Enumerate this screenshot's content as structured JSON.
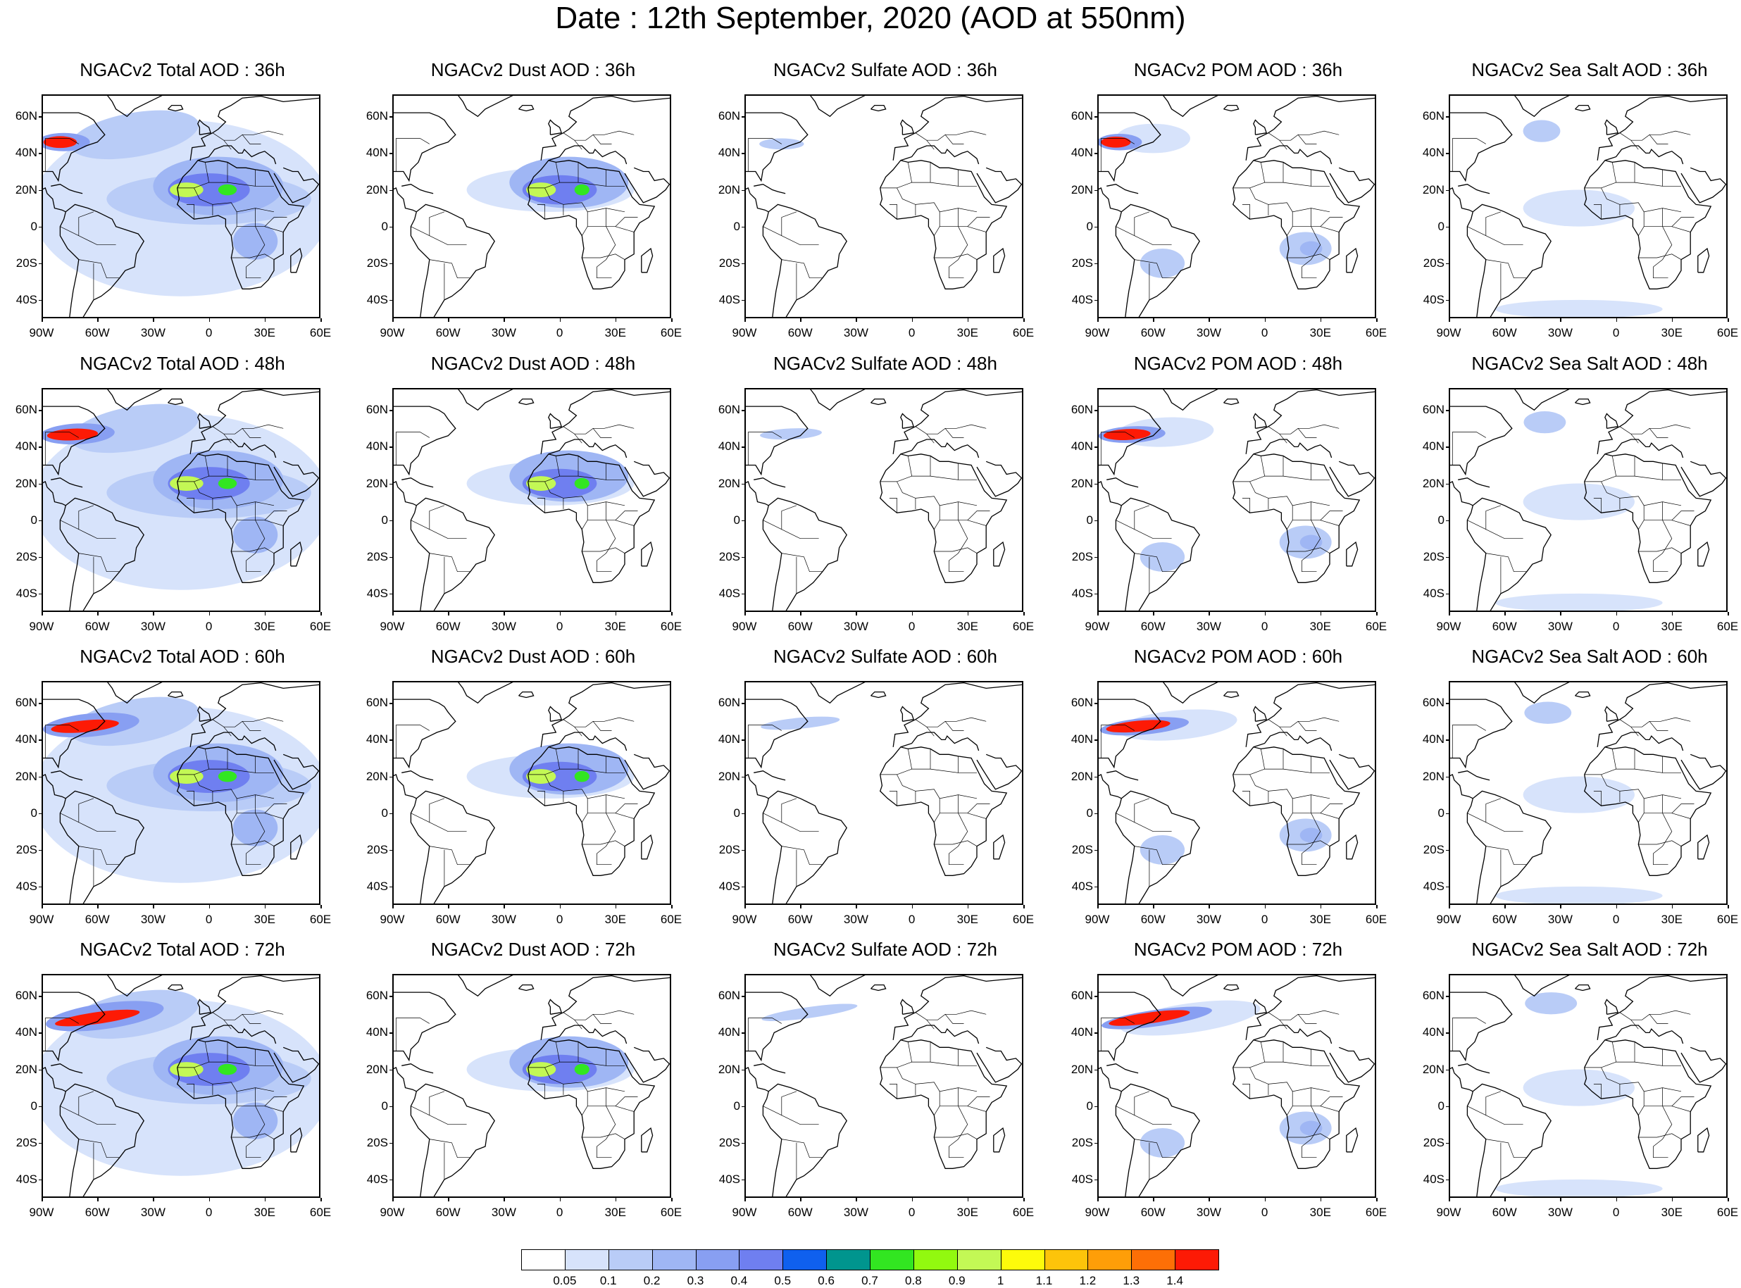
{
  "title": "Date : 12th September, 2020 (AOD at 550nm)",
  "lat_labels": [
    "60N",
    "40N",
    "20N",
    "0",
    "20S",
    "40S"
  ],
  "lon_labels": [
    "90W",
    "60W",
    "30W",
    "0",
    "30E",
    "60E"
  ],
  "panels": [
    {
      "title": "NGACv2 Total AOD : 36h",
      "species": "total",
      "hour": 36
    },
    {
      "title": "NGACv2 Dust AOD : 36h",
      "species": "dust",
      "hour": 36
    },
    {
      "title": "NGACv2 Sulfate AOD : 36h",
      "species": "sulfate",
      "hour": 36
    },
    {
      "title": "NGACv2 POM AOD : 36h",
      "species": "pom",
      "hour": 36
    },
    {
      "title": "NGACv2 Sea Salt AOD : 36h",
      "species": "seasalt",
      "hour": 36
    },
    {
      "title": "NGACv2 Total AOD : 48h",
      "species": "total",
      "hour": 48
    },
    {
      "title": "NGACv2 Dust AOD : 48h",
      "species": "dust",
      "hour": 48
    },
    {
      "title": "NGACv2 Sulfate AOD : 48h",
      "species": "sulfate",
      "hour": 48
    },
    {
      "title": "NGACv2 POM AOD : 48h",
      "species": "pom",
      "hour": 48
    },
    {
      "title": "NGACv2 Sea Salt AOD : 48h",
      "species": "seasalt",
      "hour": 48
    },
    {
      "title": "NGACv2 Total AOD : 60h",
      "species": "total",
      "hour": 60
    },
    {
      "title": "NGACv2 Dust AOD : 60h",
      "species": "dust",
      "hour": 60
    },
    {
      "title": "NGACv2 Sulfate AOD : 60h",
      "species": "sulfate",
      "hour": 60
    },
    {
      "title": "NGACv2 POM AOD : 60h",
      "species": "pom",
      "hour": 60
    },
    {
      "title": "NGACv2 Sea Salt AOD : 60h",
      "species": "seasalt",
      "hour": 60
    },
    {
      "title": "NGACv2 Total AOD : 72h",
      "species": "total",
      "hour": 72
    },
    {
      "title": "NGACv2 Dust AOD : 72h",
      "species": "dust",
      "hour": 72
    },
    {
      "title": "NGACv2 Sulfate AOD : 72h",
      "species": "sulfate",
      "hour": 72
    },
    {
      "title": "NGACv2 POM AOD : 72h",
      "species": "pom",
      "hour": 72
    },
    {
      "title": "NGACv2 Sea Salt  AOD : 72h",
      "species": "seasalt",
      "hour": 72
    }
  ],
  "colorbar": {
    "labels": [
      "0.05",
      "0.1",
      "0.2",
      "0.3",
      "0.4",
      "0.5",
      "0.6",
      "0.7",
      "0.8",
      "0.9",
      "1",
      "1.1",
      "1.2",
      "1.3",
      "1.4"
    ],
    "colors": [
      "#ffffff",
      "#d7e3fb",
      "#b9ccf7",
      "#9fb6f4",
      "#889ff2",
      "#6f7ff0",
      "#0f60ee",
      "#00958e",
      "#32e621",
      "#92f90f",
      "#c3f855",
      "#fdfb0b",
      "#fdc40a",
      "#fe9e08",
      "#fd6f06",
      "#fd1a05"
    ]
  },
  "region_colors": {
    "level1": "#d7e3fb",
    "level2": "#b9ccf7",
    "level3": "#9fb6f4",
    "level4": "#889ff2",
    "level5": "#6f7ff0",
    "level_green": "#32e621",
    "level_yellowgreen": "#c3f855",
    "level_orange": "#fe9e08",
    "level_red": "#fd1a05"
  }
}
